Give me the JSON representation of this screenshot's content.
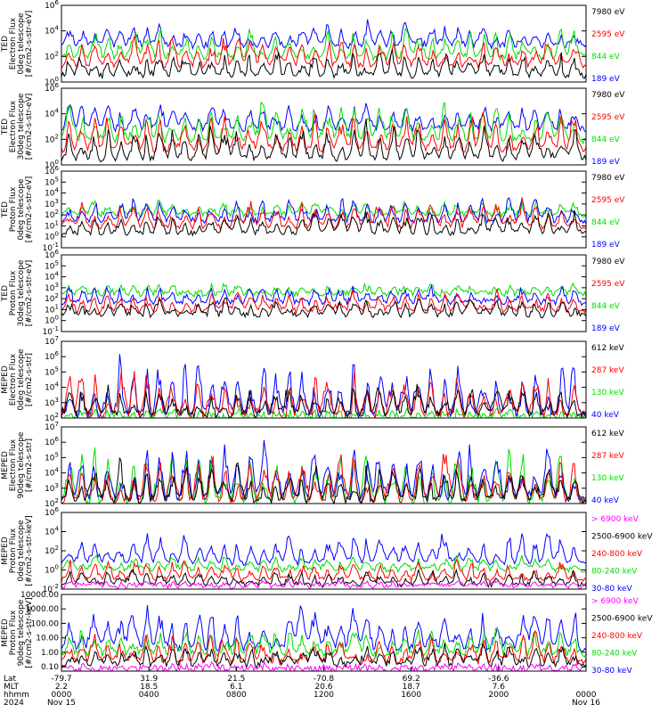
{
  "chart_data": {
    "type": "line",
    "colors": {
      "blue": "#0000ff",
      "red": "#ff0000",
      "green": "#00dd00",
      "black": "#000000",
      "magenta": "#ff00ff"
    },
    "panels": [
      {
        "id": "ted-e-0",
        "ylabel": [
          "TED",
          "Electron Flux",
          "0deg telescope",
          "[#/cm2-s-str-eV]"
        ],
        "scale": "log",
        "ylim": [
          1,
          1000000
        ],
        "yticks": [
          {
            "v": 1,
            "label": "10^0"
          },
          {
            "v": 100,
            "label": "10^2"
          },
          {
            "v": 10000,
            "label": "10^4"
          },
          {
            "v": 1000000,
            "label": "10^6"
          }
        ],
        "legend": [
          {
            "label": "7980 eV",
            "color": "black"
          },
          {
            "label": "2595 eV",
            "color": "red"
          },
          {
            "label": "844 eV",
            "color": "green"
          },
          {
            "label": "189 eV",
            "color": "blue"
          }
        ],
        "series": [
          {
            "color": "blue",
            "base": 700,
            "peak": 80000
          },
          {
            "color": "green",
            "base": 80,
            "peak": 40000
          },
          {
            "color": "red",
            "base": 20,
            "peak": 8000
          },
          {
            "color": "black",
            "base": 3,
            "peak": 800
          }
        ]
      },
      {
        "id": "ted-e-30",
        "ylabel": [
          "TED",
          "Electron Flux",
          "30deg telescope",
          "[#/cm2-s-str-eV]"
        ],
        "scale": "log",
        "ylim": [
          1,
          1000000
        ],
        "yticks": [
          {
            "v": 1,
            "label": "10^0"
          },
          {
            "v": 100,
            "label": "10^2"
          },
          {
            "v": 10000,
            "label": "10^4"
          },
          {
            "v": 1000000,
            "label": "10^6"
          }
        ],
        "legend": [
          {
            "label": "7980 eV",
            "color": "black"
          },
          {
            "label": "2595 eV",
            "color": "red"
          },
          {
            "label": "844 eV",
            "color": "green"
          },
          {
            "label": "189 eV",
            "color": "blue"
          }
        ],
        "series": [
          {
            "color": "blue",
            "base": 600,
            "peak": 200000
          },
          {
            "color": "green",
            "base": 80,
            "peak": 200000
          },
          {
            "color": "red",
            "base": 15,
            "peak": 30000
          },
          {
            "color": "black",
            "base": 3,
            "peak": 3000
          }
        ]
      },
      {
        "id": "ted-p-0",
        "ylabel": [
          "TED",
          "Proton Flux",
          "0deg telescope",
          "[#/cm2-s-str-eV]"
        ],
        "scale": "log",
        "ylim": [
          0.1,
          1000000
        ],
        "yticks": [
          {
            "v": 0.1,
            "label": "10^-1"
          },
          {
            "v": 1,
            "label": "10^0"
          },
          {
            "v": 10,
            "label": "10^1"
          },
          {
            "v": 100,
            "label": "10^2"
          },
          {
            "v": 1000,
            "label": "10^3"
          },
          {
            "v": 10000,
            "label": "10^4"
          },
          {
            "v": 100000,
            "label": "10^5"
          },
          {
            "v": 1000000,
            "label": "10^6"
          }
        ],
        "legend": [
          {
            "label": "7980 eV",
            "color": "black"
          },
          {
            "label": "2595 eV",
            "color": "red"
          },
          {
            "label": "844 eV",
            "color": "green"
          },
          {
            "label": "189 eV",
            "color": "blue"
          }
        ],
        "series": [
          {
            "color": "green",
            "base": 100,
            "peak": 3000
          },
          {
            "color": "blue",
            "base": 25,
            "peak": 10000
          },
          {
            "color": "red",
            "base": 8,
            "peak": 3000
          },
          {
            "color": "black",
            "base": 2,
            "peak": 300
          }
        ]
      },
      {
        "id": "ted-p-30",
        "ylabel": [
          "TED",
          "Proton Flux",
          "30deg telescope",
          "[#/cm2-s-str-eV]"
        ],
        "scale": "log",
        "ylim": [
          0.1,
          1000000
        ],
        "yticks": [
          {
            "v": 0.1,
            "label": "10^-1"
          },
          {
            "v": 1,
            "label": "10^0"
          },
          {
            "v": 10,
            "label": "10^1"
          },
          {
            "v": 100,
            "label": "10^2"
          },
          {
            "v": 1000,
            "label": "10^3"
          },
          {
            "v": 10000,
            "label": "10^4"
          },
          {
            "v": 100000,
            "label": "10^5"
          },
          {
            "v": 1000000,
            "label": "10^6"
          }
        ],
        "legend": [
          {
            "label": "7980 eV",
            "color": "black"
          },
          {
            "label": "2595 eV",
            "color": "red"
          },
          {
            "label": "844 eV",
            "color": "green"
          },
          {
            "label": "189 eV",
            "color": "blue"
          }
        ],
        "series": [
          {
            "color": "green",
            "base": 250,
            "peak": 3000
          },
          {
            "color": "blue",
            "base": 40,
            "peak": 3000
          },
          {
            "color": "red",
            "base": 8,
            "peak": 1000
          },
          {
            "color": "black",
            "base": 3,
            "peak": 200
          }
        ]
      },
      {
        "id": "mep-e-0",
        "ylabel": [
          "MEPED",
          "Electron Flux",
          "0deg telescope",
          "[#/cm2-s-str]"
        ],
        "scale": "log",
        "ylim": [
          100,
          10000000
        ],
        "yticks": [
          {
            "v": 100,
            "label": "10^2"
          },
          {
            "v": 1000,
            "label": "10^3"
          },
          {
            "v": 10000,
            "label": "10^4"
          },
          {
            "v": 100000,
            "label": "10^5"
          },
          {
            "v": 1000000,
            "label": "10^6"
          },
          {
            "v": 10000000,
            "label": "10^7"
          }
        ],
        "legend": [
          {
            "label": "612 keV",
            "color": "black"
          },
          {
            "label": "287 keV",
            "color": "red"
          },
          {
            "label": "130 keV",
            "color": "green"
          },
          {
            "label": "40 keV",
            "color": "blue"
          }
        ],
        "series": [
          {
            "color": "green",
            "base": 110,
            "peak": 400
          },
          {
            "color": "blue",
            "base": 170,
            "peak": 2000000
          },
          {
            "color": "red",
            "base": 150,
            "peak": 300000
          },
          {
            "color": "black",
            "base": 160,
            "peak": 20000
          }
        ]
      },
      {
        "id": "mep-e-90",
        "ylabel": [
          "MEPED",
          "Electron Flux",
          "90deg telescope",
          "[#/cm2-s-str]"
        ],
        "scale": "log",
        "ylim": [
          100,
          10000000
        ],
        "yticks": [
          {
            "v": 100,
            "label": "10^2"
          },
          {
            "v": 1000,
            "label": "10^3"
          },
          {
            "v": 10000,
            "label": "10^4"
          },
          {
            "v": 100000,
            "label": "10^5"
          },
          {
            "v": 1000000,
            "label": "10^6"
          },
          {
            "v": 10000000,
            "label": "10^7"
          }
        ],
        "legend": [
          {
            "label": "612 keV",
            "color": "black"
          },
          {
            "label": "287 keV",
            "color": "red"
          },
          {
            "label": "130 keV",
            "color": "green"
          },
          {
            "label": "40 keV",
            "color": "blue"
          }
        ],
        "series": [
          {
            "color": "green",
            "base": 130,
            "peak": 600000
          },
          {
            "color": "blue",
            "base": 200,
            "peak": 3000000
          },
          {
            "color": "red",
            "base": 150,
            "peak": 500000
          },
          {
            "color": "black",
            "base": 160,
            "peak": 100000
          }
        ]
      },
      {
        "id": "mep-p-0",
        "ylabel": [
          "MEPED",
          "Proton Flux",
          "0deg telescope",
          "[#/cm2-s-str-keV]"
        ],
        "scale": "log",
        "ylim": [
          0.01,
          1000000
        ],
        "yticks": [
          {
            "v": 0.01,
            "label": "10^-2"
          },
          {
            "v": 1,
            "label": "10^0"
          },
          {
            "v": 100,
            "label": "10^2"
          },
          {
            "v": 10000,
            "label": "10^4"
          },
          {
            "v": 1000000,
            "label": "10^6"
          }
        ],
        "legend": [
          {
            "label": "> 6900 keV",
            "color": "magenta"
          },
          {
            "label": "2500-6900 keV",
            "color": "black"
          },
          {
            "label": "240-800 keV",
            "color": "red"
          },
          {
            "label": "80-240 keV",
            "color": "green"
          },
          {
            "label": "30-80 keV",
            "color": "blue"
          }
        ],
        "series": [
          {
            "color": "blue",
            "base": 5,
            "peak": 30000
          },
          {
            "color": "green",
            "base": 1,
            "peak": 50
          },
          {
            "color": "red",
            "base": 0.1,
            "peak": 20
          },
          {
            "color": "black",
            "base": 0.03,
            "peak": 2
          },
          {
            "color": "magenta",
            "base": 0.02,
            "peak": 0.1
          }
        ]
      },
      {
        "id": "mep-p-90",
        "ylabel": [
          "MEPED",
          "Proton Flux",
          "90deg telescope",
          "[#/cm2-s-str-keV]"
        ],
        "scale": "log",
        "ylim": [
          0.05,
          10000
        ],
        "yticks": [
          {
            "v": 0.1,
            "label": "0.10"
          },
          {
            "v": 1,
            "label": "1.00"
          },
          {
            "v": 10,
            "label": "10.00"
          },
          {
            "v": 100,
            "label": "100.00"
          },
          {
            "v": 1000,
            "label": "1000.00"
          },
          {
            "v": 10000,
            "label": "10000.00"
          }
        ],
        "legend": [
          {
            "label": "> 6900 keV",
            "color": "magenta"
          },
          {
            "label": "2500-6900 keV",
            "color": "black"
          },
          {
            "label": "240-800 keV",
            "color": "red"
          },
          {
            "label": "80-240 keV",
            "color": "green"
          },
          {
            "label": "30-80 keV",
            "color": "blue"
          }
        ],
        "series": [
          {
            "color": "blue",
            "base": 2,
            "peak": 5000
          },
          {
            "color": "green",
            "base": 0.8,
            "peak": 100
          },
          {
            "color": "red",
            "base": 0.2,
            "peak": 30
          },
          {
            "color": "black",
            "base": 0.15,
            "peak": 5
          },
          {
            "color": "magenta",
            "base": 0.07,
            "peak": 0.15
          }
        ]
      }
    ],
    "x_axis": {
      "row_labels": [
        "Lat",
        "MLT",
        "hhmm",
        "2024"
      ],
      "columns": [
        {
          "lat": "-79.7",
          "mlt": "2.2",
          "hhmm": "0000",
          "date": "Nov 15"
        },
        {
          "lat": "31.9",
          "mlt": "18.5",
          "hhmm": "0400",
          "date": ""
        },
        {
          "lat": "21.5",
          "mlt": "6.1",
          "hhmm": "0800",
          "date": ""
        },
        {
          "lat": "-70.8",
          "mlt": "20.6",
          "hhmm": "1200",
          "date": ""
        },
        {
          "lat": "69.2",
          "mlt": "18.7",
          "hhmm": "1600",
          "date": ""
        },
        {
          "lat": "-36.6",
          "mlt": "7.6",
          "hhmm": "2000",
          "date": ""
        },
        {
          "lat": "",
          "mlt": "",
          "hhmm": "0000",
          "date": "Nov 16"
        }
      ]
    }
  }
}
